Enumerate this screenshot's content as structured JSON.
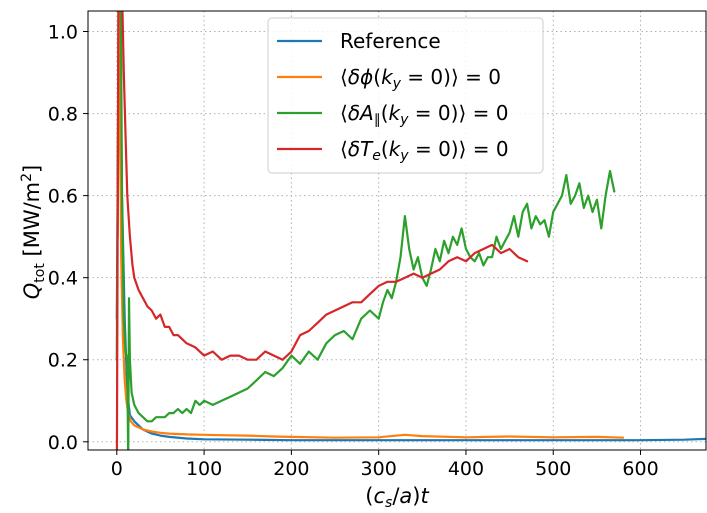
{
  "chart_data": {
    "type": "line",
    "title": "",
    "xlabel": "(c_s/a)t",
    "ylabel": "Q_tot [MW/m^2]",
    "xlim": [
      -33,
      675
    ],
    "ylim": [
      -0.02,
      1.05
    ],
    "xticks": [
      0,
      100,
      200,
      300,
      400,
      500,
      600
    ],
    "yticks": [
      0.0,
      0.2,
      0.4,
      0.6,
      0.8,
      1.0
    ],
    "grid": true,
    "legend": "top-center",
    "legend_labels": {
      "reference": "Reference",
      "phi": "⟨δφ(k_y = 0)⟩ = 0",
      "apar": "⟨δA_∥(k_y = 0)⟩ = 0",
      "te": "⟨δT_e(k_y = 0)⟩ = 0"
    },
    "series": [
      {
        "key": "reference",
        "name": "Reference",
        "color": "#1f77b4",
        "x": [
          0,
          3,
          6,
          9,
          12,
          15,
          20,
          25,
          30,
          40,
          50,
          60,
          80,
          100,
          150,
          200,
          250,
          300,
          400,
          500,
          600,
          650,
          675
        ],
        "y": [
          0.3,
          1.2,
          0.6,
          0.3,
          0.12,
          0.065,
          0.05,
          0.04,
          0.03,
          0.02,
          0.015,
          0.012,
          0.008,
          0.006,
          0.005,
          0.004,
          0.004,
          0.004,
          0.004,
          0.004,
          0.004,
          0.005,
          0.007
        ]
      },
      {
        "key": "phi",
        "name": "⟨δφ(k_y = 0)⟩ = 0",
        "color": "#ff7f0e",
        "x": [
          1,
          3,
          5,
          7,
          9,
          11,
          13,
          16,
          20,
          25,
          30,
          40,
          50,
          60,
          80,
          100,
          120,
          150,
          180,
          200,
          250,
          300,
          330,
          350,
          400,
          450,
          500,
          550,
          580
        ],
        "y": [
          0.5,
          1.1,
          0.45,
          0.25,
          0.15,
          0.1,
          0.07,
          0.05,
          0.04,
          0.035,
          0.03,
          0.025,
          0.022,
          0.02,
          0.018,
          0.017,
          0.016,
          0.015,
          0.013,
          0.012,
          0.01,
          0.011,
          0.017,
          0.014,
          0.011,
          0.013,
          0.011,
          0.012,
          0.01
        ]
      },
      {
        "key": "apar",
        "name": "⟨δA_∥(k_y = 0)⟩ = 0",
        "color": "#2ca02c",
        "x": [
          0,
          2,
          4,
          6,
          8,
          10,
          12,
          13,
          14,
          15,
          17,
          20,
          25,
          30,
          35,
          40,
          45,
          50,
          55,
          60,
          65,
          70,
          75,
          80,
          85,
          90,
          95,
          100,
          110,
          120,
          130,
          140,
          150,
          160,
          170,
          180,
          190,
          200,
          210,
          220,
          230,
          240,
          250,
          260,
          270,
          280,
          290,
          300,
          305,
          310,
          315,
          320,
          325,
          330,
          335,
          340,
          345,
          350,
          355,
          360,
          365,
          370,
          375,
          380,
          385,
          390,
          395,
          400,
          405,
          410,
          415,
          420,
          425,
          430,
          435,
          440,
          445,
          450,
          455,
          460,
          465,
          470,
          475,
          480,
          485,
          490,
          495,
          500,
          505,
          510,
          515,
          520,
          525,
          530,
          535,
          540,
          545,
          550,
          555,
          560,
          565,
          570
        ],
        "y": [
          0.2,
          1.1,
          1.3,
          0.6,
          0.3,
          0.22,
          0.2,
          -0.05,
          0.35,
          0.2,
          0.12,
          0.09,
          0.07,
          0.06,
          0.05,
          0.05,
          0.06,
          0.06,
          0.06,
          0.07,
          0.07,
          0.08,
          0.07,
          0.08,
          0.07,
          0.1,
          0.09,
          0.1,
          0.09,
          0.1,
          0.11,
          0.12,
          0.13,
          0.15,
          0.17,
          0.16,
          0.18,
          0.21,
          0.19,
          0.22,
          0.2,
          0.24,
          0.26,
          0.27,
          0.25,
          0.3,
          0.32,
          0.3,
          0.34,
          0.37,
          0.35,
          0.39,
          0.45,
          0.55,
          0.47,
          0.42,
          0.45,
          0.4,
          0.38,
          0.42,
          0.47,
          0.44,
          0.49,
          0.46,
          0.5,
          0.48,
          0.52,
          0.47,
          0.45,
          0.44,
          0.46,
          0.43,
          0.45,
          0.45,
          0.5,
          0.47,
          0.49,
          0.51,
          0.55,
          0.5,
          0.56,
          0.58,
          0.52,
          0.55,
          0.53,
          0.54,
          0.5,
          0.56,
          0.58,
          0.6,
          0.65,
          0.58,
          0.6,
          0.63,
          0.57,
          0.6,
          0.56,
          0.59,
          0.52,
          0.6,
          0.66,
          0.61
        ]
      },
      {
        "key": "te",
        "name": "⟨δT_e(k_y = 0)⟩ = 0",
        "color": "#d62728",
        "x": [
          0,
          2,
          4,
          6,
          8,
          10,
          12,
          15,
          18,
          20,
          25,
          30,
          35,
          40,
          45,
          50,
          55,
          60,
          65,
          70,
          80,
          90,
          100,
          110,
          120,
          130,
          140,
          150,
          160,
          170,
          180,
          190,
          200,
          210,
          220,
          230,
          240,
          250,
          260,
          270,
          280,
          290,
          300,
          310,
          320,
          330,
          340,
          350,
          360,
          370,
          380,
          390,
          400,
          410,
          420,
          430,
          440,
          450,
          460,
          470
        ],
        "y": [
          -0.1,
          1.2,
          1.3,
          1.1,
          0.9,
          0.75,
          0.6,
          0.5,
          0.43,
          0.4,
          0.37,
          0.35,
          0.33,
          0.32,
          0.3,
          0.31,
          0.28,
          0.28,
          0.26,
          0.26,
          0.24,
          0.23,
          0.21,
          0.22,
          0.2,
          0.21,
          0.21,
          0.2,
          0.2,
          0.22,
          0.21,
          0.2,
          0.22,
          0.26,
          0.27,
          0.29,
          0.31,
          0.32,
          0.33,
          0.34,
          0.34,
          0.36,
          0.38,
          0.39,
          0.39,
          0.4,
          0.41,
          0.4,
          0.41,
          0.42,
          0.44,
          0.45,
          0.44,
          0.46,
          0.47,
          0.48,
          0.46,
          0.47,
          0.45,
          0.44
        ]
      }
    ]
  }
}
